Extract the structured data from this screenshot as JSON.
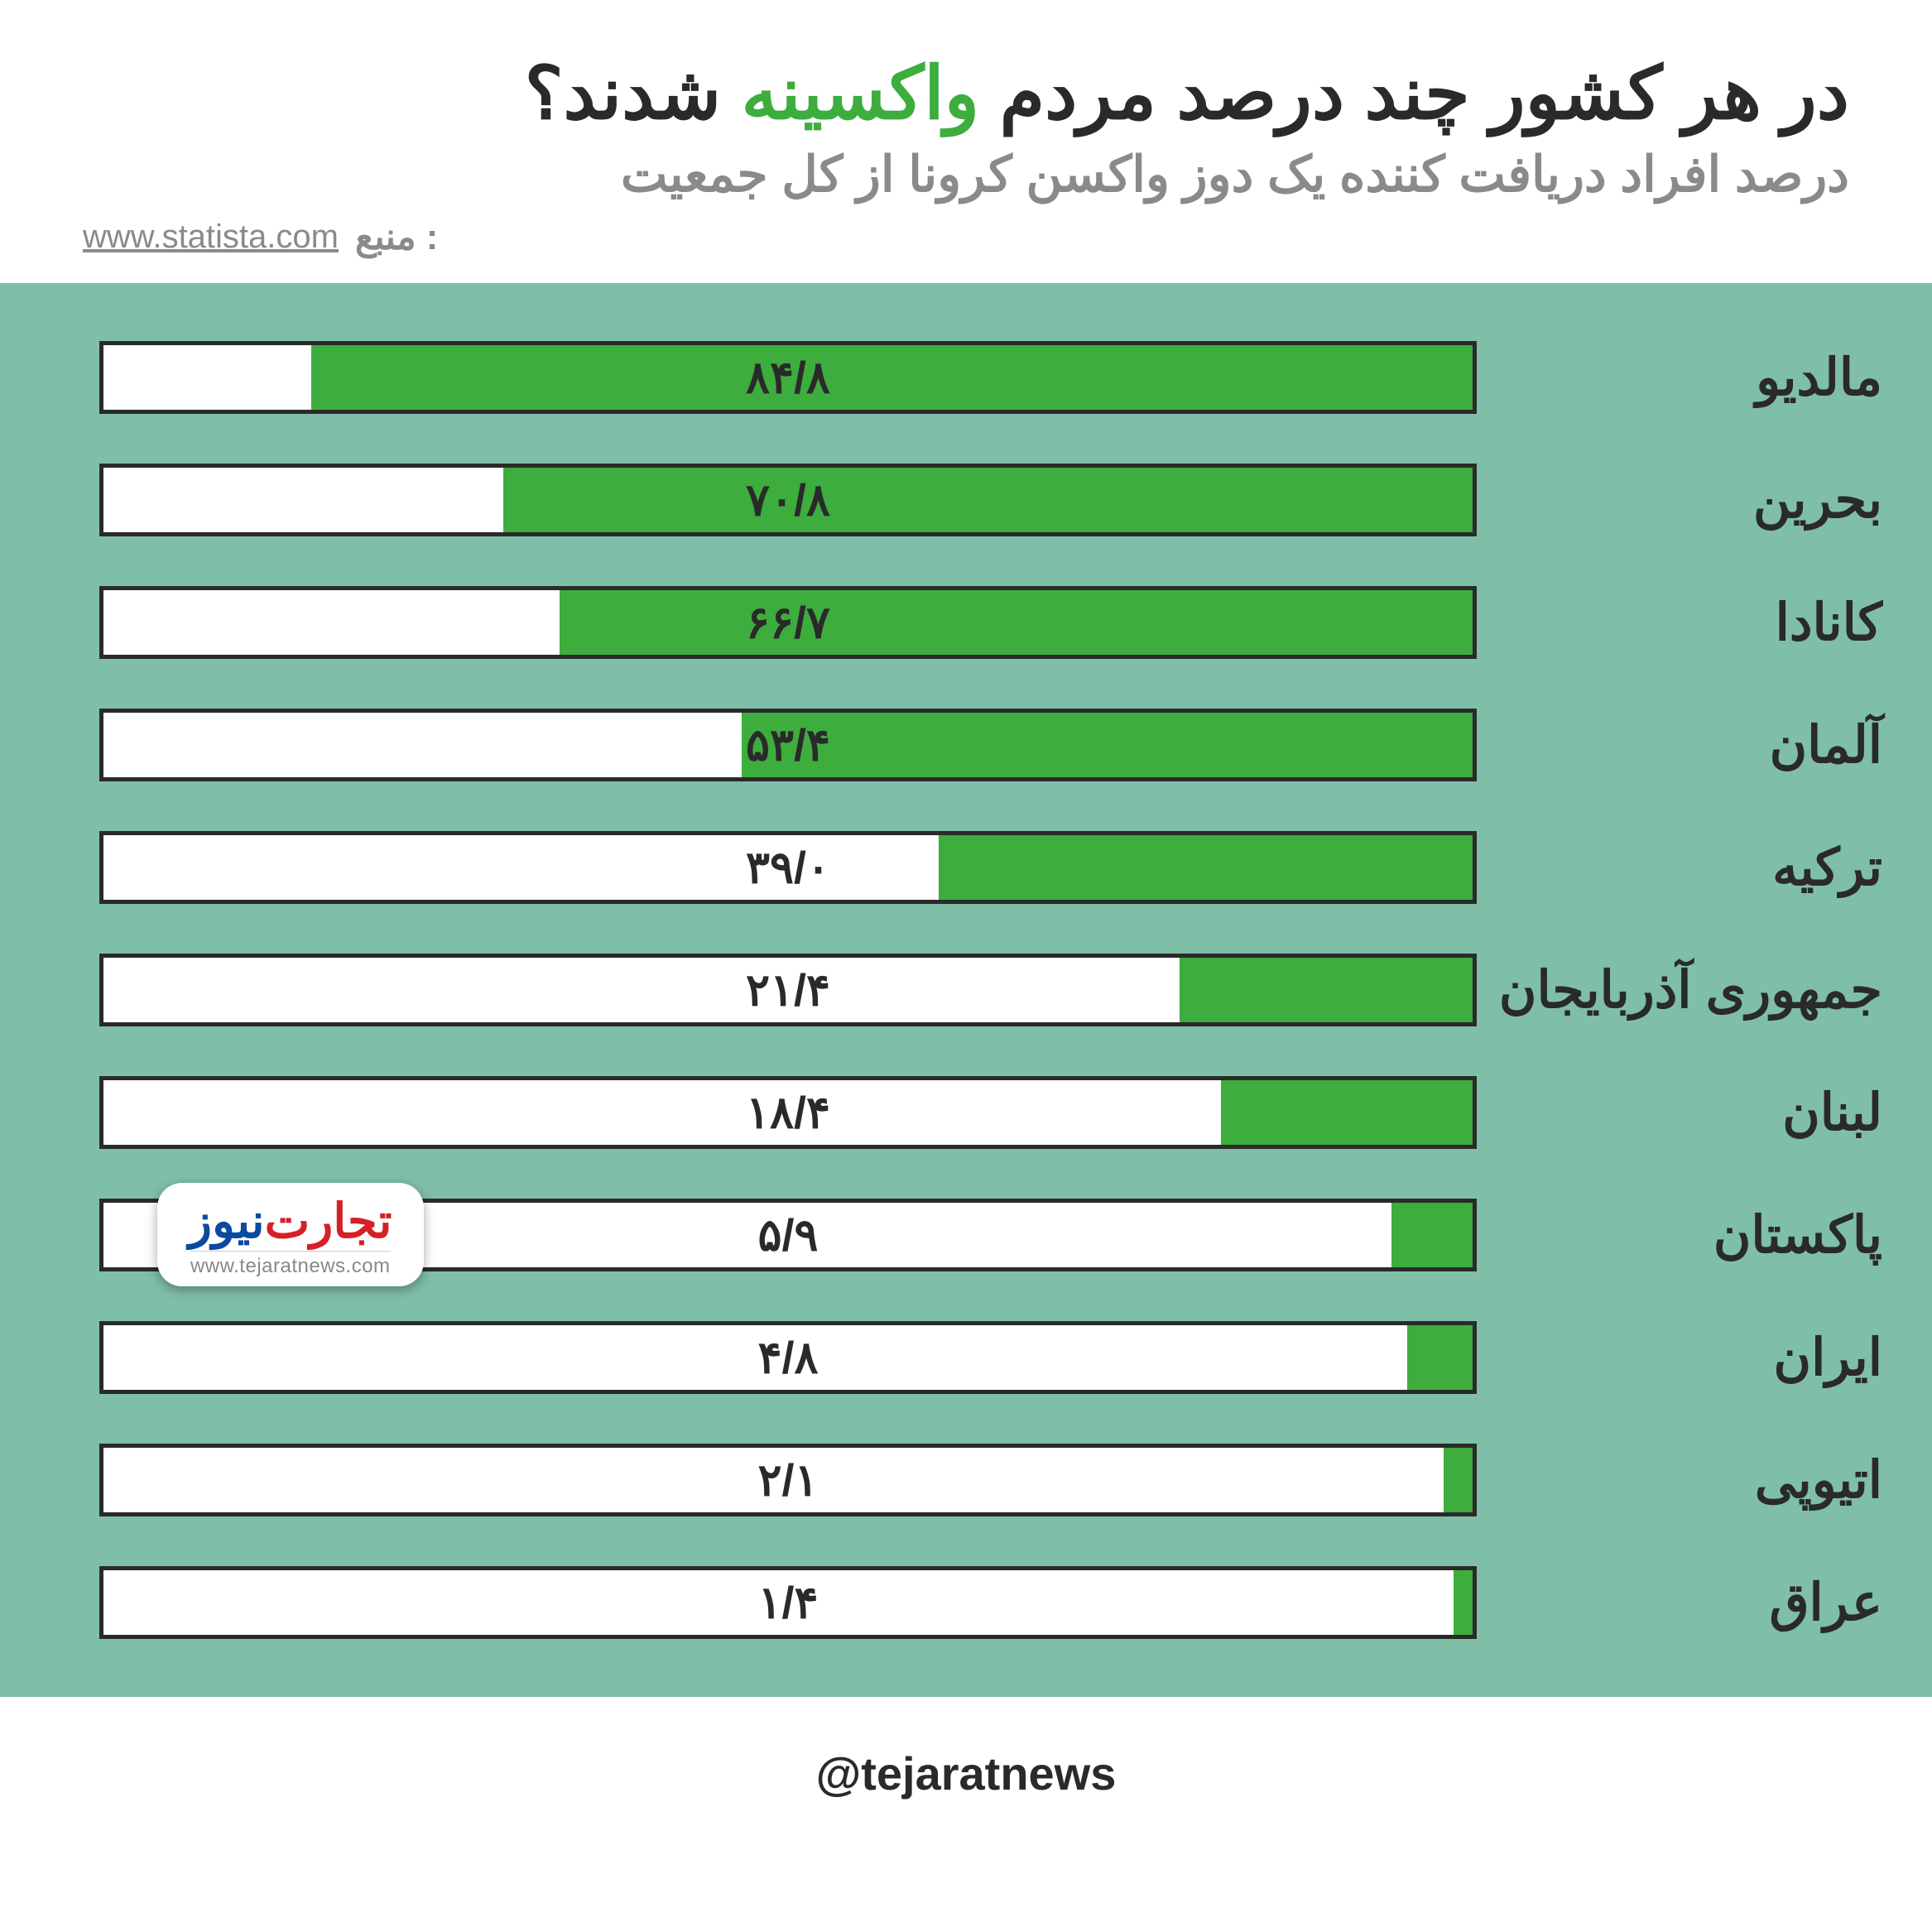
{
  "header": {
    "title_part1": "در هر کشور چند درصد مردم ",
    "title_green": "واکسینه",
    "title_part2": " شدند؟",
    "subtitle": "درصد افراد دریافت کننده یک دوز واکسن کرونا از کل جمعیت",
    "source_label": "منبع :",
    "source_url": "www.statista.com"
  },
  "chart": {
    "type": "bar",
    "bar_fill_color": "#3dad3e",
    "bar_bg_color": "#ffffff",
    "bar_border_color": "#2a2a2a",
    "area_bg_color": "#7fbfa8",
    "max": 100,
    "rows": [
      {
        "country": "مالدیو",
        "value": 84.8,
        "label": "۸۴/۸"
      },
      {
        "country": "بحرین",
        "value": 70.8,
        "label": "۷۰/۸"
      },
      {
        "country": "کانادا",
        "value": 66.7,
        "label": "۶۶/۷"
      },
      {
        "country": "آلمان",
        "value": 53.4,
        "label": "۵۳/۴"
      },
      {
        "country": "ترکیه",
        "value": 39.0,
        "label": "۳۹/۰"
      },
      {
        "country": "جمهوری آذربایجان",
        "value": 21.4,
        "label": "۲۱/۴"
      },
      {
        "country": "لبنان",
        "value": 18.4,
        "label": "۱۸/۴"
      },
      {
        "country": "پاکستان",
        "value": 5.9,
        "label": "۵/۹"
      },
      {
        "country": "ایران",
        "value": 4.8,
        "label": "۴/۸"
      },
      {
        "country": "اتیوپی",
        "value": 2.1,
        "label": "۲/۱"
      },
      {
        "country": "عراق",
        "value": 1.4,
        "label": "۱/۴"
      }
    ]
  },
  "watermark": {
    "tejarat": "تجارت",
    "news": "‌نیوز",
    "url": "www.tejaratnews.com",
    "row_index": 7
  },
  "footer": {
    "handle": "@tejaratnews"
  }
}
